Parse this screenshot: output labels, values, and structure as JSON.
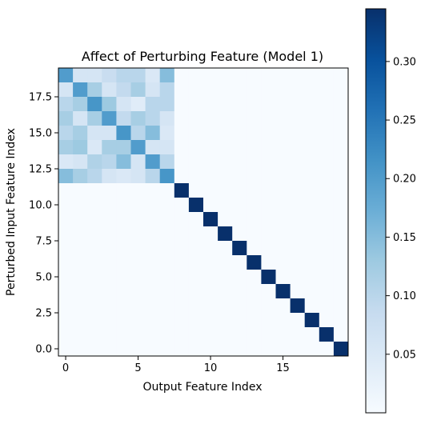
{
  "chart_data": {
    "type": "heatmap",
    "title": "Affect of Perturbing Feature (Model 1)",
    "xlabel": "Output Feature Index",
    "ylabel": "Perturbed Input Feature Index",
    "rows": 20,
    "cols": 20,
    "xlim": [
      -0.5,
      19.5
    ],
    "ylim": [
      19.5,
      -0.5
    ],
    "x_ticks": [
      0,
      5,
      10,
      15
    ],
    "x_tick_labels": [
      "0",
      "5",
      "10",
      "15"
    ],
    "y_ticks": [
      0,
      2.5,
      5,
      7.5,
      10,
      12.5,
      15,
      17.5
    ],
    "y_tick_labels": [
      "0.0",
      "2.5",
      "5.0",
      "7.5",
      "10.0",
      "12.5",
      "15.0",
      "17.5"
    ],
    "colormap": "Blues",
    "colorbar": {
      "min": 0.0,
      "max": 0.345,
      "ticks": [
        0.05,
        0.1,
        0.15,
        0.2,
        0.25,
        0.3
      ],
      "tick_labels": [
        "0.05",
        "0.10",
        "0.15",
        "0.20",
        "0.25",
        "0.30"
      ]
    },
    "values": [
      [
        0.2,
        0.06,
        0.06,
        0.08,
        0.1,
        0.1,
        0.05,
        0.15,
        0,
        0,
        0,
        0,
        0,
        0,
        0,
        0,
        0,
        0,
        0,
        0
      ],
      [
        0.06,
        0.2,
        0.12,
        0.06,
        0.09,
        0.12,
        0.06,
        0.1,
        0,
        0,
        0,
        0,
        0,
        0,
        0,
        0,
        0,
        0,
        0,
        0
      ],
      [
        0.1,
        0.12,
        0.21,
        0.13,
        0.06,
        0.04,
        0.1,
        0.1,
        0,
        0,
        0,
        0,
        0,
        0,
        0,
        0,
        0,
        0,
        0,
        0
      ],
      [
        0.12,
        0.06,
        0.12,
        0.2,
        0.09,
        0.12,
        0.1,
        0.06,
        0,
        0,
        0,
        0,
        0,
        0,
        0,
        0,
        0,
        0,
        0,
        0
      ],
      [
        0.1,
        0.12,
        0.06,
        0.06,
        0.21,
        0.1,
        0.15,
        0.05,
        0,
        0,
        0,
        0,
        0,
        0,
        0,
        0,
        0,
        0,
        0,
        0
      ],
      [
        0.12,
        0.13,
        0.05,
        0.12,
        0.12,
        0.2,
        0.06,
        0.06,
        0,
        0,
        0,
        0,
        0,
        0,
        0,
        0,
        0,
        0,
        0,
        0
      ],
      [
        0.05,
        0.06,
        0.11,
        0.1,
        0.15,
        0.06,
        0.2,
        0.1,
        0,
        0,
        0,
        0,
        0,
        0,
        0,
        0,
        0,
        0,
        0,
        0
      ],
      [
        0.15,
        0.12,
        0.1,
        0.06,
        0.05,
        0.06,
        0.1,
        0.21,
        0,
        0,
        0,
        0,
        0,
        0,
        0,
        0,
        0,
        0,
        0,
        0
      ],
      [
        0,
        0,
        0,
        0,
        0,
        0,
        0,
        0,
        0.345,
        0,
        0,
        0,
        0,
        0,
        0,
        0,
        0,
        0,
        0,
        0
      ],
      [
        0,
        0,
        0,
        0,
        0,
        0,
        0,
        0,
        0,
        0.345,
        0,
        0,
        0,
        0,
        0,
        0,
        0,
        0,
        0,
        0
      ],
      [
        0,
        0,
        0,
        0,
        0,
        0,
        0,
        0,
        0,
        0,
        0.345,
        0,
        0,
        0,
        0,
        0,
        0,
        0,
        0,
        0
      ],
      [
        0,
        0,
        0,
        0,
        0,
        0,
        0,
        0,
        0,
        0,
        0,
        0.345,
        0,
        0,
        0,
        0,
        0,
        0,
        0,
        0
      ],
      [
        0,
        0,
        0,
        0,
        0,
        0,
        0,
        0,
        0,
        0,
        0,
        0,
        0.345,
        0,
        0,
        0,
        0,
        0,
        0,
        0
      ],
      [
        0,
        0,
        0,
        0,
        0,
        0,
        0,
        0,
        0,
        0,
        0,
        0,
        0,
        0.345,
        0,
        0,
        0,
        0,
        0,
        0
      ],
      [
        0,
        0,
        0,
        0,
        0,
        0,
        0,
        0,
        0,
        0,
        0,
        0,
        0,
        0,
        0.345,
        0,
        0,
        0,
        0,
        0
      ],
      [
        0,
        0,
        0,
        0,
        0,
        0,
        0,
        0,
        0,
        0,
        0,
        0,
        0,
        0,
        0,
        0.345,
        0,
        0,
        0,
        0
      ],
      [
        0,
        0,
        0,
        0,
        0,
        0,
        0,
        0,
        0,
        0,
        0,
        0,
        0,
        0,
        0,
        0,
        0.345,
        0,
        0,
        0
      ],
      [
        0,
        0,
        0,
        0,
        0,
        0,
        0,
        0,
        0,
        0,
        0,
        0,
        0,
        0,
        0,
        0,
        0,
        0.345,
        0,
        0
      ],
      [
        0,
        0,
        0,
        0,
        0,
        0,
        0,
        0,
        0,
        0,
        0,
        0,
        0,
        0,
        0,
        0,
        0,
        0,
        0.345,
        0
      ],
      [
        0,
        0,
        0,
        0,
        0,
        0,
        0,
        0,
        0,
        0,
        0,
        0,
        0,
        0,
        0,
        0,
        0,
        0,
        0,
        0.345
      ]
    ]
  }
}
